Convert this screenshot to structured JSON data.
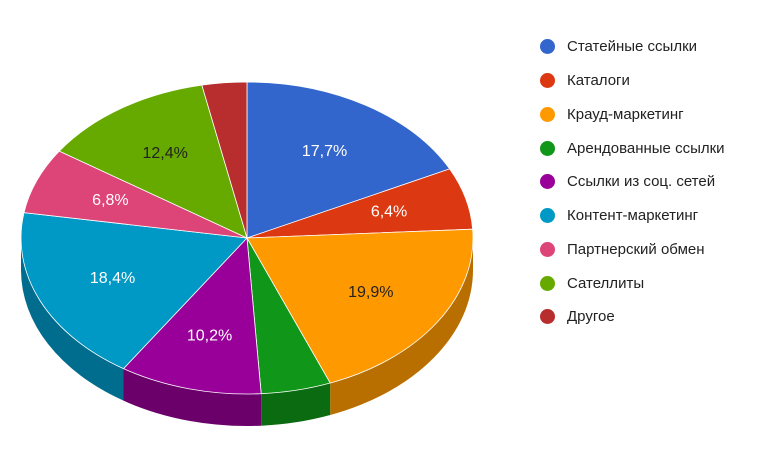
{
  "chart_data": {
    "type": "pie",
    "style": "3d",
    "legend_position": "right",
    "slices": [
      {
        "label": "Статейные ссылки",
        "value": 17.7,
        "value_label": "17,7%",
        "color": "#3366cc",
        "side_color": "#2a54a8",
        "label_color": "#ffffff"
      },
      {
        "label": "Каталоги",
        "value": 6.4,
        "value_label": "6,4%",
        "color": "#dc3912",
        "side_color": "#a82b0e",
        "label_color": "#ffffff"
      },
      {
        "label": "Крауд-маркетинг",
        "value": 19.9,
        "value_label": "19,9%",
        "color": "#ff9900",
        "side_color": "#b86f00",
        "label_color": "#222222"
      },
      {
        "label": "Арендованные ссылки",
        "value": 5.0,
        "value_label": "",
        "color": "#109618",
        "side_color": "#0b6b11",
        "label_color": "#ffffff"
      },
      {
        "label": "Ссылки из соц. сетей",
        "value": 10.2,
        "value_label": "10,2%",
        "color": "#990099",
        "side_color": "#6b006b",
        "label_color": "#ffffff"
      },
      {
        "label": "Контент-маркетинг",
        "value": 18.4,
        "value_label": "18,4%",
        "color": "#0099c6",
        "side_color": "#006d8e",
        "label_color": "#ffffff"
      },
      {
        "label": "Партнерский обмен",
        "value": 6.8,
        "value_label": "6,8%",
        "color": "#dd4477",
        "side_color": "#a3325a",
        "label_color": "#ffffff"
      },
      {
        "label": "Сателлиты",
        "value": 12.4,
        "value_label": "12,4%",
        "color": "#66aa00",
        "side_color": "#4a7c00",
        "label_color": "#222222"
      },
      {
        "label": "Другое",
        "value": 3.2,
        "value_label": "",
        "color": "#b82e2e",
        "side_color": "#862121",
        "label_color": "#ffffff"
      }
    ]
  }
}
